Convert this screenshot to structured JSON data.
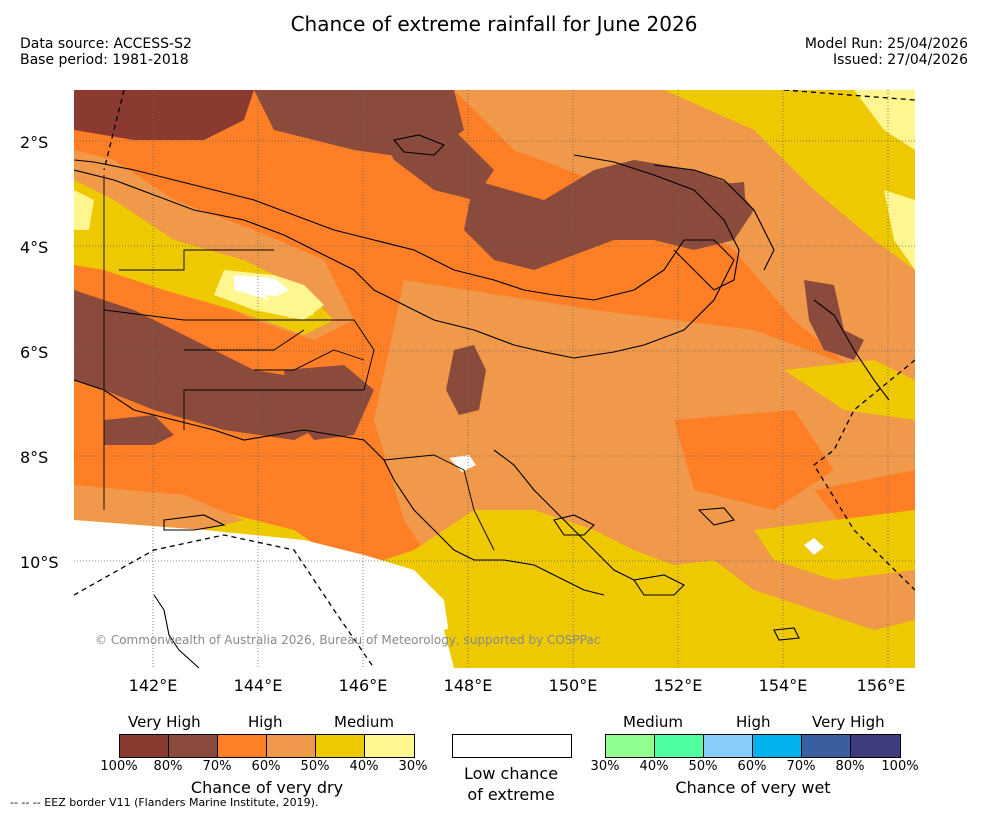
{
  "header": {
    "title": "Chance of extreme rainfall for June 2026",
    "data_source": "Data source: ACCESS-S2",
    "base_period": "Base period: 1981-2018",
    "model_run": "Model Run: 25/04/2026",
    "issued": "Issued: 27/04/2026"
  },
  "map": {
    "lat_labels": [
      "2°S",
      "4°S",
      "6°S",
      "8°S",
      "10°S"
    ],
    "lon_labels": [
      "142°E",
      "144°E",
      "146°E",
      "148°E",
      "150°E",
      "152°E",
      "154°E",
      "156°E"
    ],
    "copyright": "© Commonwealth of Australia 2026, Bureau of Meteorology, supported by COSPPac",
    "colors": {
      "very_high_dry_dark": "#8b3a30",
      "very_high_dry": "#8b4b3c",
      "high_dry": "#ff7f27",
      "high_dry_light": "#f0994a",
      "medium_dry": "#eec900",
      "medium_dry_light": "#fff68f",
      "low": "#ffffff"
    }
  },
  "legend": {
    "dry": {
      "categories": [
        "Very High",
        "High",
        "Medium"
      ],
      "percents": [
        "100%",
        "80%",
        "70%",
        "60%",
        "50%",
        "40%",
        "30%"
      ],
      "colors": [
        "#8b3a30",
        "#8b4b3c",
        "#ff7f27",
        "#f0994a",
        "#eec900",
        "#fff68f"
      ],
      "caption": "Chance of very dry"
    },
    "low": {
      "caption_line1": "Low chance",
      "caption_line2": "of extreme"
    },
    "wet": {
      "categories": [
        "Medium",
        "High",
        "Very High"
      ],
      "percents": [
        "30%",
        "40%",
        "50%",
        "60%",
        "70%",
        "80%",
        "100%"
      ],
      "colors": [
        "#90ff90",
        "#50ffa0",
        "#87cefa",
        "#00b2ee",
        "#3a5fa0",
        "#3d3d7e"
      ],
      "caption": "Chance of very wet"
    }
  },
  "footer": {
    "eez_note": "--  --  -- EEZ border V11 (Flanders Marine Institute, 2019)."
  }
}
